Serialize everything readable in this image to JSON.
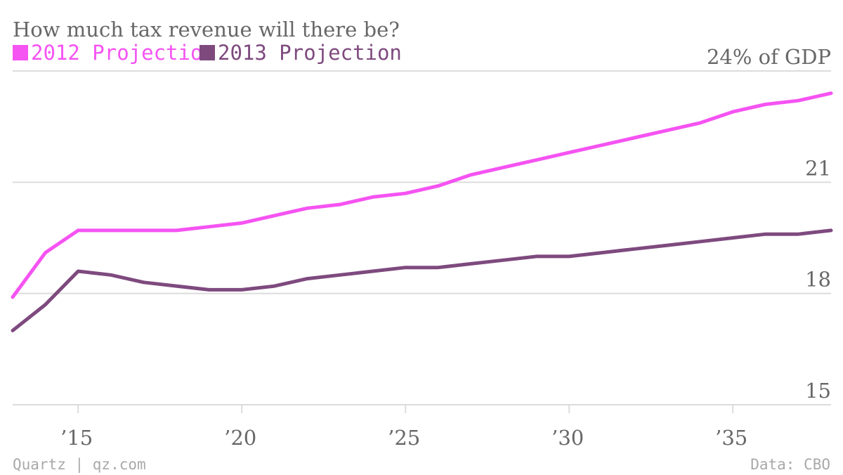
{
  "chart_data": {
    "type": "line",
    "title": "How much tax revenue will there be?",
    "ylabel": "",
    "xlabel": "",
    "ylim": [
      15,
      24
    ],
    "xlim": [
      2013,
      2038
    ],
    "y_ticks": [
      {
        "value": 24,
        "label": "24% of GDP"
      },
      {
        "value": 21,
        "label": "21"
      },
      {
        "value": 18,
        "label": "18"
      },
      {
        "value": 15,
        "label": "15"
      }
    ],
    "x_ticks": [
      {
        "value": 2015,
        "label": "’15"
      },
      {
        "value": 2020,
        "label": "’20"
      },
      {
        "value": 2025,
        "label": "’25"
      },
      {
        "value": 2030,
        "label": "’30"
      },
      {
        "value": 2035,
        "label": "’35"
      }
    ],
    "grid": "horizontal",
    "legend": "top-left",
    "x": [
      2013,
      2014,
      2015,
      2016,
      2017,
      2018,
      2019,
      2020,
      2021,
      2022,
      2023,
      2024,
      2025,
      2026,
      2027,
      2028,
      2029,
      2030,
      2031,
      2032,
      2033,
      2034,
      2035,
      2036,
      2037,
      2038
    ],
    "series": [
      {
        "name": "2012 Projection",
        "color": "#f553f2",
        "values": [
          17.9,
          19.1,
          19.7,
          19.7,
          19.7,
          19.7,
          19.8,
          19.9,
          20.1,
          20.3,
          20.4,
          20.6,
          20.7,
          20.9,
          21.2,
          21.4,
          21.6,
          21.8,
          22.0,
          22.2,
          22.4,
          22.6,
          22.9,
          23.1,
          23.2,
          23.4
        ]
      },
      {
        "name": "2013 Projection",
        "color": "#7e4a7e",
        "values": [
          17.0,
          17.7,
          18.6,
          18.5,
          18.3,
          18.2,
          18.1,
          18.1,
          18.2,
          18.4,
          18.5,
          18.6,
          18.7,
          18.7,
          18.8,
          18.9,
          19.0,
          19.0,
          19.1,
          19.2,
          19.3,
          19.4,
          19.5,
          19.6,
          19.6,
          19.7
        ]
      }
    ]
  },
  "footer": {
    "source_left": "Quartz | qz.com",
    "source_right": "Data: CBO"
  }
}
